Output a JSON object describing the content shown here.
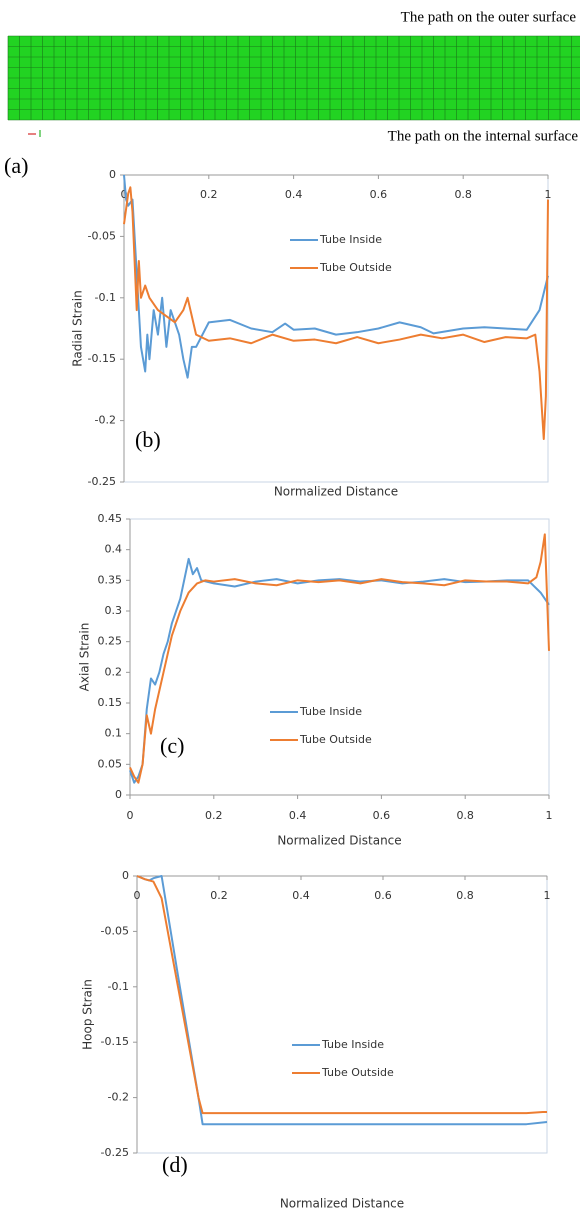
{
  "panel_a": {
    "label": "(a)",
    "outer_label": "The path on the outer surface",
    "inner_label": "The path on the internal surface"
  },
  "chart_data": [
    {
      "type": "line",
      "panel_label": "(b)",
      "x_label": "Normalized Distance",
      "y_label": "Radial Strain",
      "xlim": [
        0,
        1
      ],
      "xticks": [
        0,
        0.2,
        0.4,
        0.6,
        0.8,
        1
      ],
      "ylim": [
        -0.25,
        0
      ],
      "yticks": [
        0,
        -0.05,
        -0.1,
        -0.15,
        -0.2,
        -0.25
      ],
      "series": [
        {
          "name": "Tube Inside",
          "color": "#5b9bd5",
          "x": [
            0,
            0.005,
            0.01,
            0.02,
            0.03,
            0.04,
            0.05,
            0.055,
            0.06,
            0.07,
            0.08,
            0.09,
            0.1,
            0.11,
            0.12,
            0.13,
            0.14,
            0.15,
            0.16,
            0.17,
            0.2,
            0.25,
            0.3,
            0.35,
            0.38,
            0.4,
            0.45,
            0.5,
            0.55,
            0.6,
            0.65,
            0.7,
            0.73,
            0.8,
            0.85,
            0.9,
            0.95,
            0.98,
            1.0
          ],
          "values": [
            0,
            -0.02,
            -0.025,
            -0.02,
            -0.08,
            -0.14,
            -0.16,
            -0.13,
            -0.15,
            -0.11,
            -0.13,
            -0.1,
            -0.14,
            -0.11,
            -0.12,
            -0.13,
            -0.15,
            -0.165,
            -0.14,
            -0.14,
            -0.12,
            -0.118,
            -0.125,
            -0.128,
            -0.121,
            -0.126,
            -0.125,
            -0.13,
            -0.128,
            -0.125,
            -0.12,
            -0.124,
            -0.129,
            -0.125,
            -0.124,
            -0.125,
            -0.126,
            -0.11,
            -0.082
          ]
        },
        {
          "name": "Tube Outside",
          "color": "#ed7d31",
          "x": [
            0,
            0.01,
            0.015,
            0.02,
            0.03,
            0.035,
            0.04,
            0.05,
            0.06,
            0.08,
            0.1,
            0.12,
            0.14,
            0.15,
            0.17,
            0.2,
            0.25,
            0.3,
            0.35,
            0.4,
            0.45,
            0.5,
            0.55,
            0.6,
            0.65,
            0.7,
            0.75,
            0.8,
            0.85,
            0.9,
            0.95,
            0.97,
            0.98,
            0.99,
            0.995,
            1.0
          ],
          "values": [
            -0.04,
            -0.015,
            -0.01,
            -0.03,
            -0.11,
            -0.07,
            -0.1,
            -0.09,
            -0.1,
            -0.11,
            -0.115,
            -0.12,
            -0.11,
            -0.1,
            -0.13,
            -0.135,
            -0.133,
            -0.137,
            -0.13,
            -0.135,
            -0.134,
            -0.137,
            -0.132,
            -0.137,
            -0.134,
            -0.13,
            -0.133,
            -0.13,
            -0.136,
            -0.132,
            -0.133,
            -0.13,
            -0.16,
            -0.215,
            -0.18,
            -0.02
          ]
        }
      ]
    },
    {
      "type": "line",
      "panel_label": "(c)",
      "x_label": "Normalized Distance",
      "y_label": "Axial Strain",
      "xlim": [
        0,
        1
      ],
      "xticks": [
        0,
        0.2,
        0.4,
        0.6,
        0.8,
        1
      ],
      "ylim": [
        0,
        0.45
      ],
      "yticks": [
        0,
        0.05,
        0.1,
        0.15,
        0.2,
        0.25,
        0.3,
        0.35,
        0.4,
        0.45
      ],
      "series": [
        {
          "name": "Tube Inside",
          "color": "#5b9bd5",
          "x": [
            0,
            0.01,
            0.02,
            0.03,
            0.04,
            0.05,
            0.06,
            0.07,
            0.08,
            0.09,
            0.1,
            0.12,
            0.14,
            0.15,
            0.16,
            0.17,
            0.2,
            0.25,
            0.3,
            0.35,
            0.4,
            0.45,
            0.5,
            0.55,
            0.6,
            0.65,
            0.7,
            0.75,
            0.8,
            0.85,
            0.9,
            0.95,
            0.98,
            1.0
          ],
          "values": [
            0.04,
            0.02,
            0.03,
            0.05,
            0.14,
            0.19,
            0.18,
            0.2,
            0.23,
            0.25,
            0.28,
            0.32,
            0.385,
            0.36,
            0.37,
            0.35,
            0.345,
            0.34,
            0.348,
            0.352,
            0.345,
            0.35,
            0.352,
            0.348,
            0.35,
            0.345,
            0.348,
            0.352,
            0.347,
            0.348,
            0.35,
            0.35,
            0.33,
            0.31
          ]
        },
        {
          "name": "Tube Outside",
          "color": "#ed7d31",
          "x": [
            0,
            0.01,
            0.02,
            0.03,
            0.04,
            0.05,
            0.06,
            0.08,
            0.1,
            0.12,
            0.14,
            0.16,
            0.18,
            0.2,
            0.25,
            0.3,
            0.35,
            0.4,
            0.45,
            0.5,
            0.55,
            0.6,
            0.65,
            0.7,
            0.75,
            0.8,
            0.85,
            0.9,
            0.95,
            0.97,
            0.98,
            0.99,
            1.0
          ],
          "values": [
            0.045,
            0.03,
            0.02,
            0.05,
            0.13,
            0.1,
            0.14,
            0.2,
            0.26,
            0.3,
            0.33,
            0.345,
            0.35,
            0.348,
            0.352,
            0.345,
            0.342,
            0.35,
            0.347,
            0.35,
            0.345,
            0.352,
            0.347,
            0.345,
            0.342,
            0.35,
            0.348,
            0.348,
            0.345,
            0.355,
            0.38,
            0.425,
            0.235
          ]
        }
      ]
    },
    {
      "type": "line",
      "panel_label": "(d)",
      "x_label": "Normalized Distance",
      "y_label": "Hoop Strain",
      "xlim": [
        0,
        1
      ],
      "xticks": [
        0,
        0.2,
        0.4,
        0.6,
        0.8,
        1
      ],
      "ylim": [
        -0.25,
        0
      ],
      "yticks": [
        0,
        -0.05,
        -0.1,
        -0.15,
        -0.2,
        -0.25
      ],
      "series": [
        {
          "name": "Tube Inside",
          "color": "#5b9bd5",
          "x": [
            0,
            0.02,
            0.03,
            0.04,
            0.06,
            0.1,
            0.15,
            0.16,
            0.2,
            0.4,
            0.6,
            0.8,
            0.95,
            1.0
          ],
          "values": [
            0,
            -0.003,
            -0.004,
            -0.002,
            0,
            -0.09,
            -0.2,
            -0.224,
            -0.224,
            -0.224,
            -0.224,
            -0.224,
            -0.224,
            -0.222
          ]
        },
        {
          "name": "Tube Outside",
          "color": "#ed7d31",
          "x": [
            0,
            0.02,
            0.04,
            0.06,
            0.1,
            0.15,
            0.16,
            0.2,
            0.4,
            0.6,
            0.8,
            0.95,
            0.99,
            1.0
          ],
          "values": [
            0,
            -0.003,
            -0.005,
            -0.02,
            -0.1,
            -0.2,
            -0.214,
            -0.214,
            -0.214,
            -0.214,
            -0.214,
            -0.214,
            -0.213,
            -0.213
          ]
        }
      ]
    }
  ]
}
